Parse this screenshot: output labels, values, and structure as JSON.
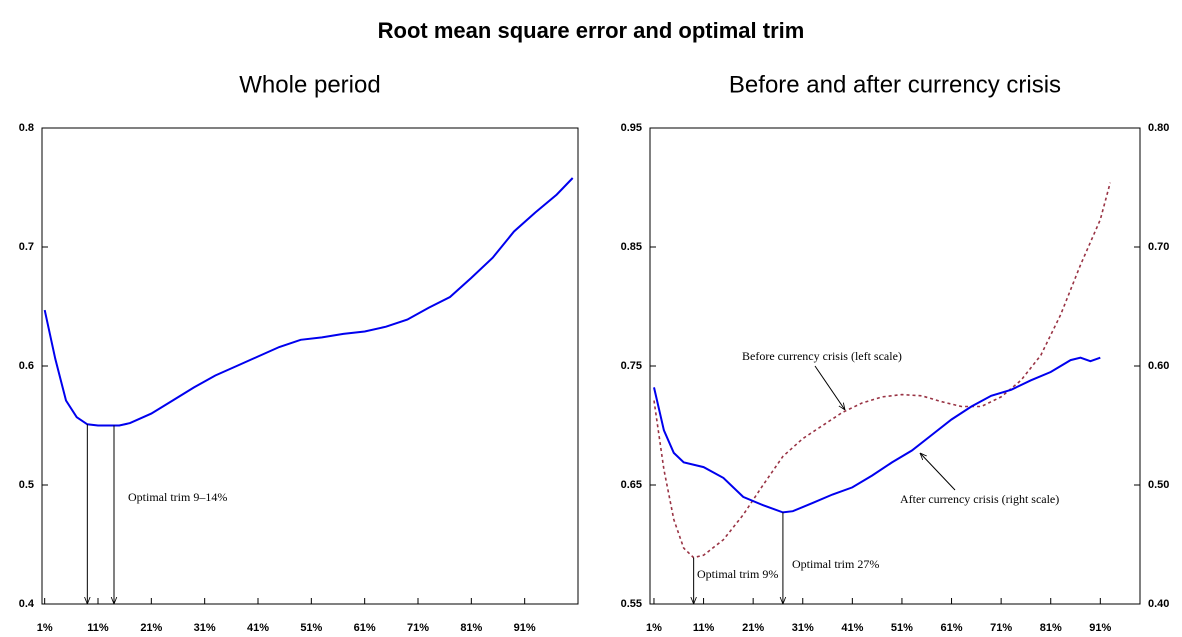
{
  "title": "Root mean square error and optimal trim",
  "chart_data": [
    {
      "type": "line",
      "title": "Whole period",
      "xlim": [
        0.5,
        101
      ],
      "xticks": [
        {
          "value": 1,
          "label": "1%"
        },
        {
          "value": 11,
          "label": "11%"
        },
        {
          "value": 21,
          "label": "21%"
        },
        {
          "value": 31,
          "label": "31%"
        },
        {
          "value": 41,
          "label": "41%"
        },
        {
          "value": 51,
          "label": "51%"
        },
        {
          "value": 61,
          "label": "61%"
        },
        {
          "value": 71,
          "label": "71%"
        },
        {
          "value": 81,
          "label": "81%"
        },
        {
          "value": 91,
          "label": "91%"
        }
      ],
      "ylim": [
        0.4,
        0.8
      ],
      "yticks": [
        0.4,
        0.5,
        0.6,
        0.7,
        0.8
      ],
      "series": [
        {
          "color": "#0000ee",
          "x": [
            1,
            3,
            5,
            7,
            9,
            11,
            13,
            15,
            17,
            21,
            25,
            29,
            33,
            37,
            41,
            45,
            49,
            53,
            57,
            61,
            65,
            69,
            73,
            77,
            81,
            85,
            89,
            93,
            97,
            100
          ],
          "values": [
            0.647,
            0.606,
            0.571,
            0.557,
            0.551,
            0.55,
            0.55,
            0.55,
            0.552,
            0.56,
            0.571,
            0.582,
            0.592,
            0.6,
            0.608,
            0.616,
            0.622,
            0.624,
            0.627,
            0.629,
            0.633,
            0.639,
            0.649,
            0.658,
            0.674,
            0.691,
            0.713,
            0.729,
            0.744,
            0.758
          ]
        }
      ],
      "annotations": [
        {
          "text": "Optimal trim 9–14%",
          "arrow_x": [
            9,
            14
          ]
        }
      ]
    },
    {
      "type": "line",
      "title": "Before and after currency crisis",
      "xlim": [
        0.2,
        99
      ],
      "xticks": [
        {
          "value": 1,
          "label": "1%"
        },
        {
          "value": 11,
          "label": "11%"
        },
        {
          "value": 21,
          "label": "21%"
        },
        {
          "value": 31,
          "label": "31%"
        },
        {
          "value": 41,
          "label": "41%"
        },
        {
          "value": 51,
          "label": "51%"
        },
        {
          "value": 61,
          "label": "61%"
        },
        {
          "value": 71,
          "label": "71%"
        },
        {
          "value": 81,
          "label": "81%"
        },
        {
          "value": 91,
          "label": "91%"
        }
      ],
      "ylim": [
        0.55,
        0.95
      ],
      "yticks": [
        0.55,
        0.65,
        0.75,
        0.85,
        0.95
      ],
      "y2lim": [
        0.4,
        0.8
      ],
      "y2ticks": [
        {
          "value": 0.4,
          "label": "0.40"
        },
        {
          "value": 0.5,
          "label": "0.50"
        },
        {
          "value": 0.6,
          "label": "0.60"
        },
        {
          "value": 0.7,
          "label": "0.70"
        },
        {
          "value": 0.8,
          "label": "0.80"
        }
      ],
      "series": [
        {
          "name": "Before currency crisis (left scale)",
          "color": "#993344",
          "dash": true,
          "x": [
            1,
            3,
            5,
            7,
            9,
            11,
            15,
            19,
            23,
            27,
            31,
            35,
            39,
            43,
            47,
            51,
            55,
            59,
            63,
            67,
            71,
            75,
            79,
            83,
            87,
            91,
            93
          ],
          "values": [
            0.721,
            0.663,
            0.621,
            0.597,
            0.589,
            0.591,
            0.604,
            0.625,
            0.65,
            0.674,
            0.689,
            0.7,
            0.711,
            0.719,
            0.724,
            0.726,
            0.725,
            0.72,
            0.716,
            0.716,
            0.724,
            0.738,
            0.759,
            0.793,
            0.835,
            0.873,
            0.904
          ]
        },
        {
          "name": "After currency crisis (right scale)",
          "color": "#0000ee",
          "axis": "y2",
          "x": [
            1,
            3,
            5,
            7,
            11,
            15,
            19,
            23,
            27,
            29,
            33,
            37,
            41,
            45,
            49,
            53,
            57,
            61,
            65,
            69,
            73,
            77,
            81,
            85,
            87,
            89,
            91
          ],
          "values": [
            0.582,
            0.546,
            0.527,
            0.519,
            0.515,
            0.506,
            0.49,
            0.483,
            0.477,
            0.478,
            0.485,
            0.492,
            0.498,
            0.508,
            0.519,
            0.529,
            0.542,
            0.555,
            0.566,
            0.575,
            0.58,
            0.588,
            0.595,
            0.605,
            0.607,
            0.604,
            0.607
          ]
        }
      ],
      "annotations": [
        {
          "text": "Optimal trim 9%",
          "arrow_x": [
            9
          ]
        },
        {
          "text": "Optimal trim 27%",
          "arrow_x": [
            27
          ]
        }
      ]
    }
  ]
}
